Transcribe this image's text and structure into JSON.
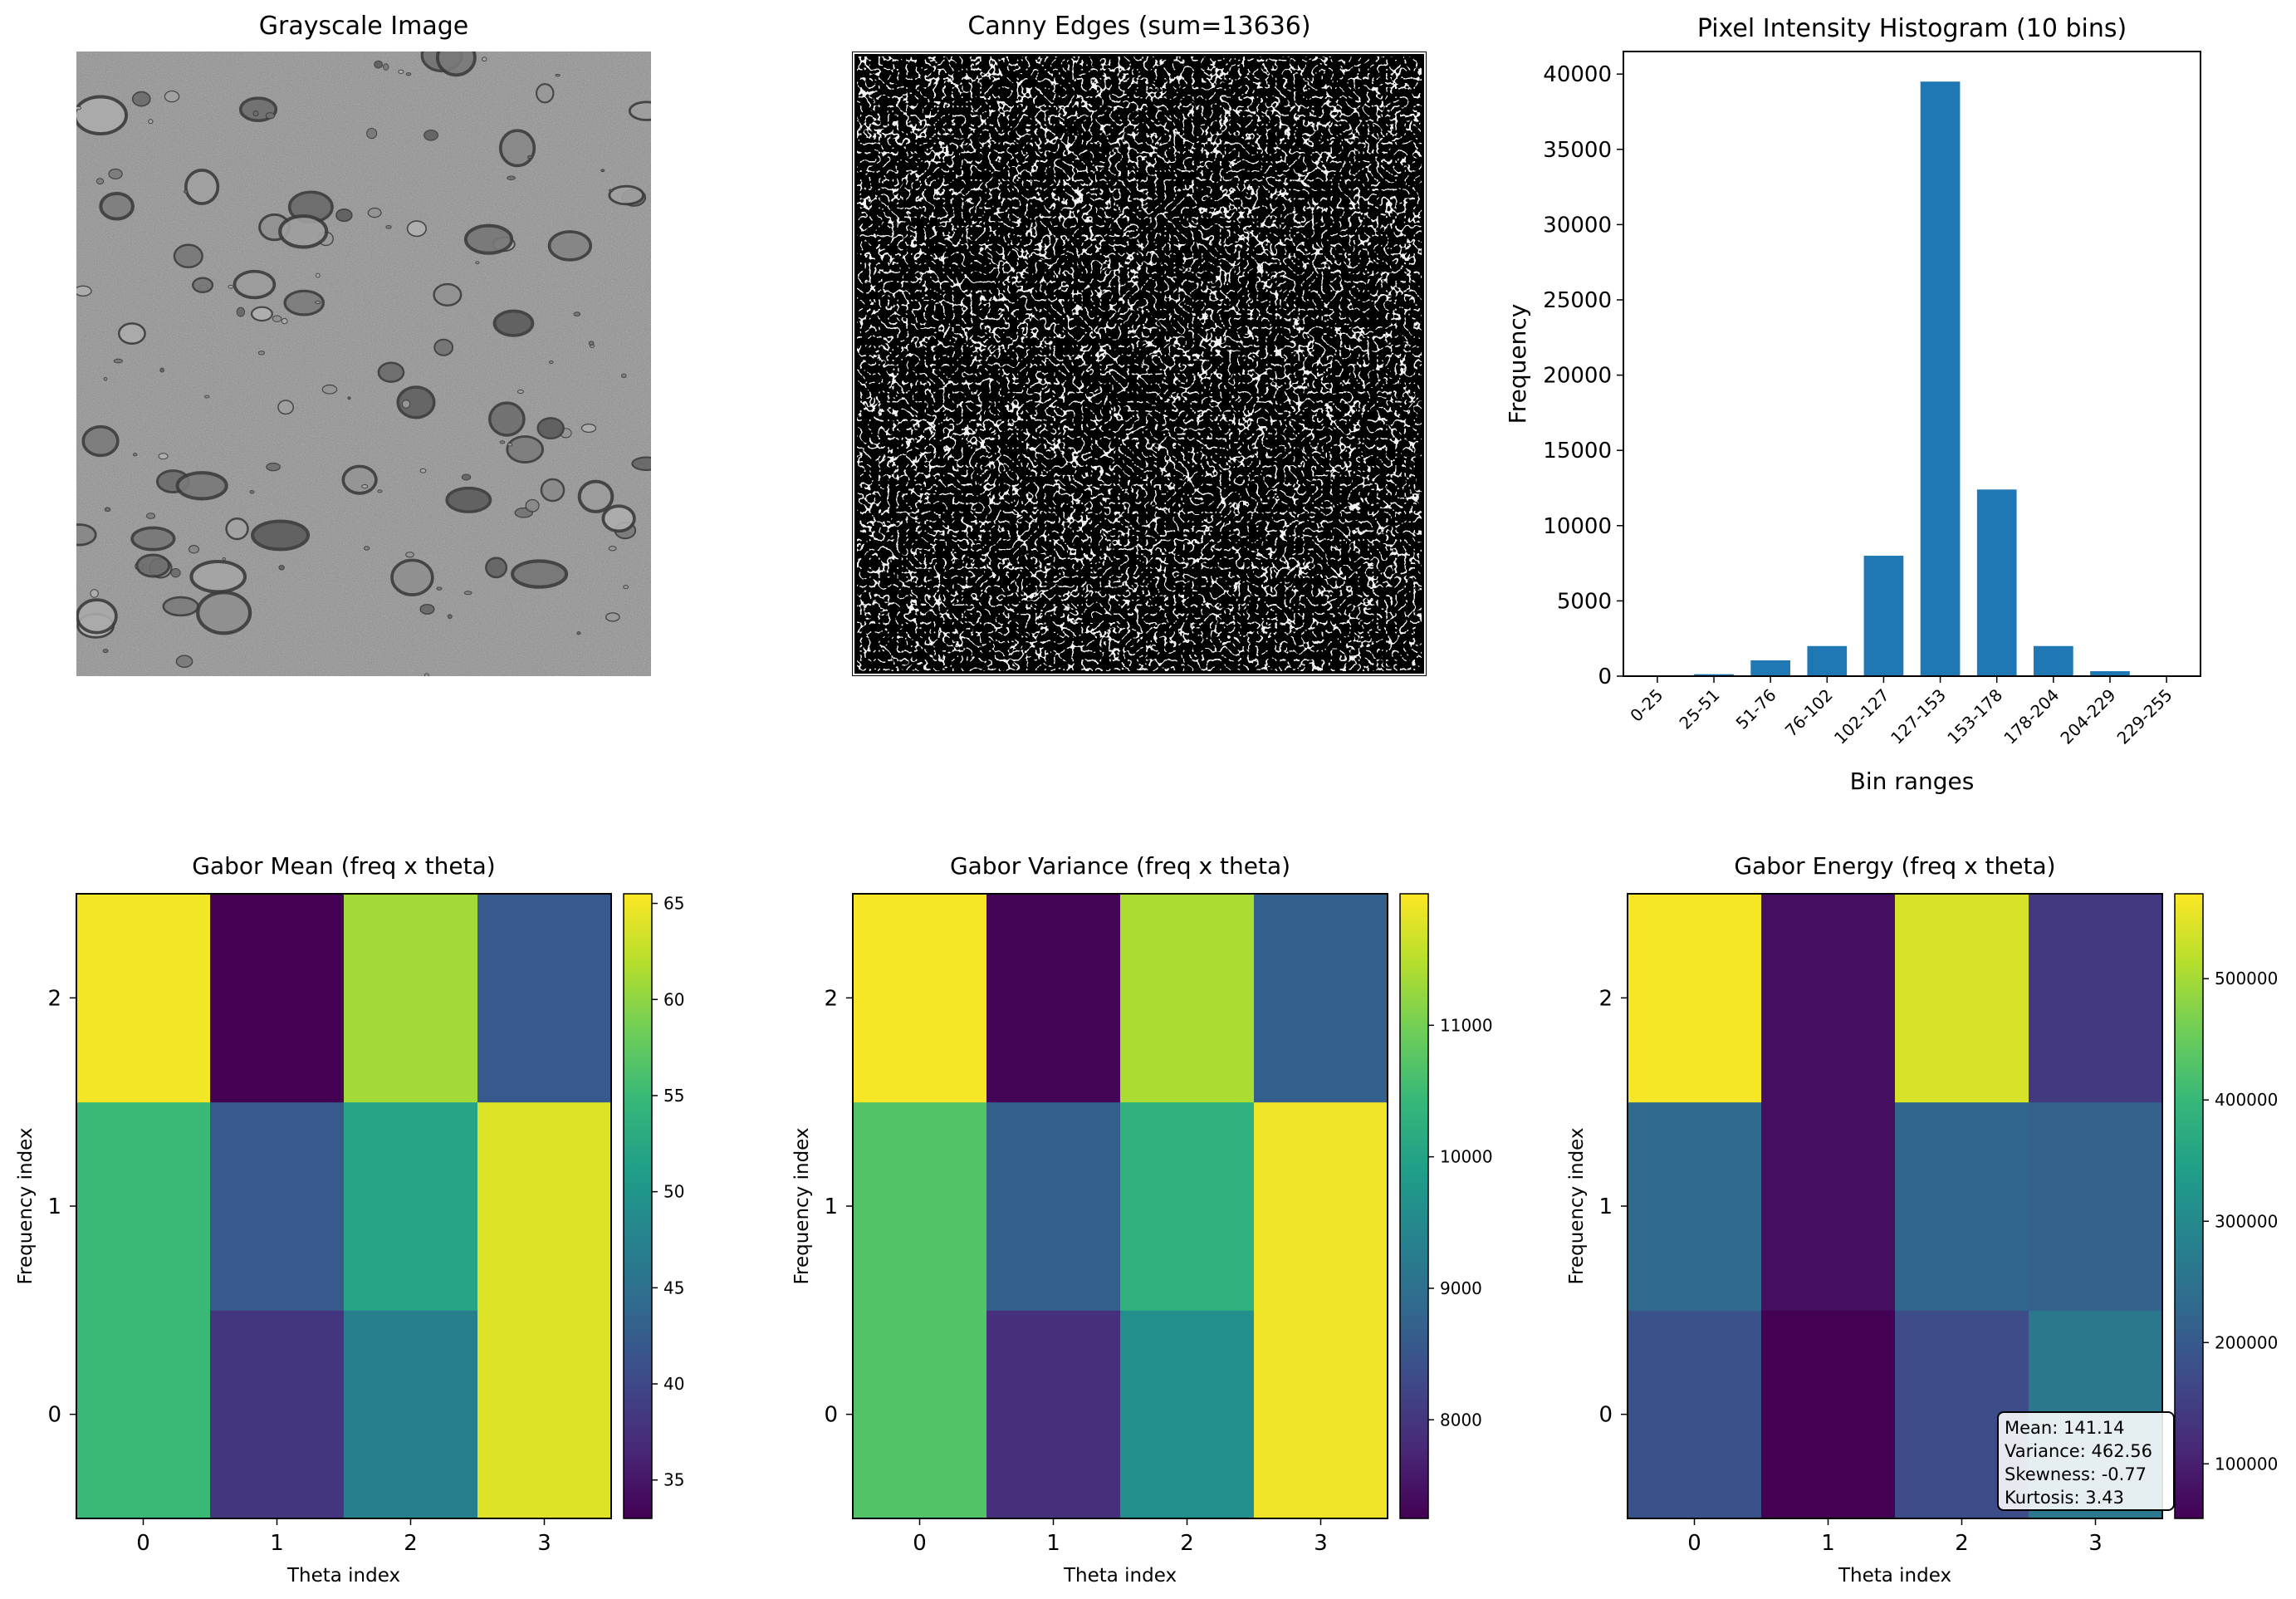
{
  "panels": {
    "grayscale": {
      "title": "Grayscale Image"
    },
    "canny": {
      "title": "Canny Edges (sum=13636)"
    }
  },
  "chart_data": [
    {
      "type": "bar",
      "title": "Pixel Intensity Histogram (10 bins)",
      "xlabel": "Bin ranges",
      "ylabel": "Frequency",
      "categories": [
        "0-25",
        "25-51",
        "51-76",
        "76-102",
        "102-127",
        "127-153",
        "153-178",
        "178-204",
        "204-229",
        "229-255"
      ],
      "values": [
        30,
        130,
        1050,
        2000,
        8000,
        39500,
        12400,
        2000,
        330,
        20
      ],
      "ylim": [
        0,
        41500
      ],
      "yticks": [
        0,
        5000,
        10000,
        15000,
        20000,
        25000,
        30000,
        35000,
        40000
      ],
      "color": "#1f77b4"
    },
    {
      "type": "heatmap",
      "title": "Gabor Mean (freq x theta)",
      "xlabel": "Theta index",
      "ylabel": "Frequency index",
      "x": [
        0,
        1,
        2,
        3
      ],
      "y": [
        0,
        1,
        2
      ],
      "values": [
        [
          55,
          38,
          47,
          64
        ],
        [
          55,
          42,
          52,
          64
        ],
        [
          65,
          33,
          61,
          42
        ]
      ],
      "colorbar": {
        "min": 33,
        "max": 65.5,
        "ticks": [
          35,
          40,
          45,
          50,
          55,
          60,
          65
        ]
      }
    },
    {
      "type": "heatmap",
      "title": "Gabor Variance (freq x theta)",
      "xlabel": "Theta index",
      "ylabel": "Frequency index",
      "x": [
        0,
        1,
        2,
        3
      ],
      "y": [
        0,
        1,
        2
      ],
      "values": [
        [
          10700,
          7900,
          9600,
          11900
        ],
        [
          10700,
          8700,
          10300,
          11900
        ],
        [
          11950,
          7300,
          11400,
          8700
        ]
      ],
      "colorbar": {
        "min": 7250,
        "max": 12000,
        "ticks": [
          8000,
          9000,
          10000,
          11000
        ]
      }
    },
    {
      "type": "heatmap",
      "title": "Gabor Energy (freq x theta)",
      "xlabel": "Theta index",
      "ylabel": "Frequency index",
      "x": [
        0,
        1,
        2,
        3
      ],
      "y": [
        0,
        1,
        2
      ],
      "values": [
        [
          185000,
          55000,
          175000,
          260000
        ],
        [
          230000,
          75000,
          225000,
          215000
        ],
        [
          565000,
          75000,
          540000,
          140000
        ]
      ],
      "colorbar": {
        "min": 55000,
        "max": 570000,
        "ticks": [
          100000,
          200000,
          300000,
          400000,
          500000
        ]
      },
      "annotation": [
        "Mean: 141.14",
        "Variance: 462.56",
        "Skewness: -0.77",
        "Kurtosis: 3.43"
      ]
    }
  ]
}
